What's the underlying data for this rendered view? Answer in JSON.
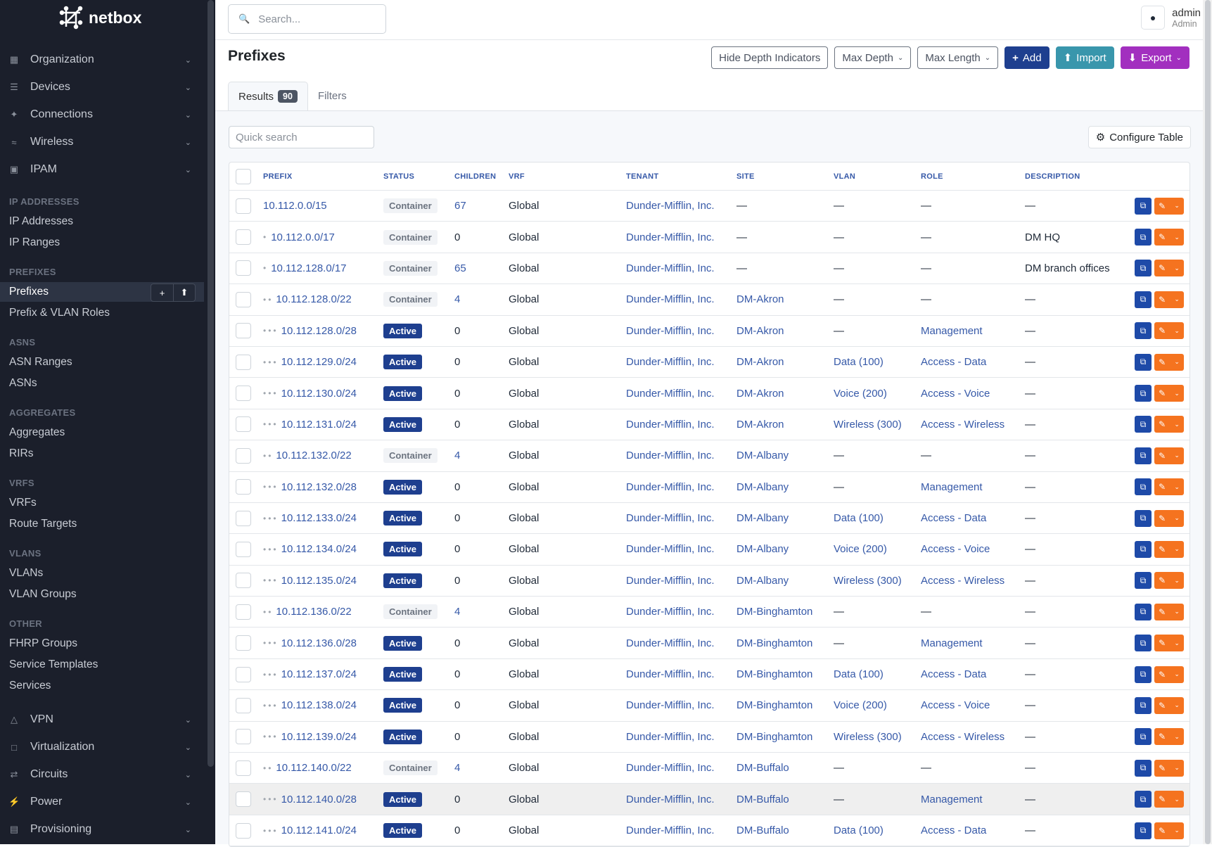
{
  "app": {
    "logo": "netbox"
  },
  "sidebar": {
    "groups_top": [
      {
        "label": "Organization",
        "icon": "building-icon"
      },
      {
        "label": "Devices",
        "icon": "server-icon"
      },
      {
        "label": "Connections",
        "icon": "plug-icon"
      },
      {
        "label": "Wireless",
        "icon": "wifi-icon"
      },
      {
        "label": "IPAM",
        "icon": "counter-icon"
      }
    ],
    "sections": [
      {
        "heading": "IP ADDRESSES",
        "items": [
          "IP Addresses",
          "IP Ranges"
        ]
      },
      {
        "heading": "PREFIXES",
        "items": [
          "Prefixes",
          "Prefix & VLAN Roles"
        ]
      },
      {
        "heading": "ASNS",
        "items": [
          "ASN Ranges",
          "ASNs"
        ]
      },
      {
        "heading": "AGGREGATES",
        "items": [
          "Aggregates",
          "RIRs"
        ]
      },
      {
        "heading": "VRFS",
        "items": [
          "VRFs",
          "Route Targets"
        ]
      },
      {
        "heading": "VLANS",
        "items": [
          "VLANs",
          "VLAN Groups"
        ]
      },
      {
        "heading": "OTHER",
        "items": [
          "FHRP Groups",
          "Service Templates",
          "Services"
        ]
      }
    ],
    "active_item": "Prefixes",
    "groups_bottom": [
      {
        "label": "VPN",
        "icon": "vpn-icon"
      },
      {
        "label": "Virtualization",
        "icon": "monitor-icon"
      },
      {
        "label": "Circuits",
        "icon": "circuit-icon"
      },
      {
        "label": "Power",
        "icon": "power-icon"
      },
      {
        "label": "Provisioning",
        "icon": "file-icon"
      }
    ]
  },
  "topbar": {
    "search_placeholder": "Search...",
    "user": "admin",
    "role": "Admin"
  },
  "page": {
    "title": "Prefixes",
    "buttons": {
      "hide_depth": "Hide Depth Indicators",
      "max_depth": "Max Depth",
      "max_length": "Max Length",
      "add": "Add",
      "import": "Import",
      "export": "Export"
    },
    "tabs": {
      "results": "Results",
      "results_count": "90",
      "filters": "Filters"
    },
    "quick_search_placeholder": "Quick search",
    "configure_table": "Configure Table"
  },
  "colors": {
    "add": "#1e3f8f",
    "import": "#3996ac",
    "export": "#a22fbf",
    "edit": "#f5731f",
    "link": "#3659a8"
  },
  "table": {
    "columns": [
      "PREFIX",
      "STATUS",
      "CHILDREN",
      "VRF",
      "TENANT",
      "SITE",
      "VLAN",
      "ROLE",
      "DESCRIPTION"
    ],
    "rows": [
      {
        "depth": 0,
        "prefix": "10.112.0.0/15",
        "status": "Container",
        "children": "67",
        "vrf": "Global",
        "tenant": "Dunder-Mifflin, Inc.",
        "site": "—",
        "vlan": "—",
        "role": "—",
        "description": "—"
      },
      {
        "depth": 1,
        "prefix": "10.112.0.0/17",
        "status": "Container",
        "children": "0",
        "vrf": "Global",
        "tenant": "Dunder-Mifflin, Inc.",
        "site": "—",
        "vlan": "—",
        "role": "—",
        "description": "DM HQ"
      },
      {
        "depth": 1,
        "prefix": "10.112.128.0/17",
        "status": "Container",
        "children": "65",
        "vrf": "Global",
        "tenant": "Dunder-Mifflin, Inc.",
        "site": "—",
        "vlan": "—",
        "role": "—",
        "description": "DM branch offices"
      },
      {
        "depth": 2,
        "prefix": "10.112.128.0/22",
        "status": "Container",
        "children": "4",
        "vrf": "Global",
        "tenant": "Dunder-Mifflin, Inc.",
        "site": "DM-Akron",
        "vlan": "—",
        "role": "—",
        "description": "—"
      },
      {
        "depth": 3,
        "prefix": "10.112.128.0/28",
        "status": "Active",
        "children": "0",
        "vrf": "Global",
        "tenant": "Dunder-Mifflin, Inc.",
        "site": "DM-Akron",
        "vlan": "—",
        "role": "Management",
        "description": "—"
      },
      {
        "depth": 3,
        "prefix": "10.112.129.0/24",
        "status": "Active",
        "children": "0",
        "vrf": "Global",
        "tenant": "Dunder-Mifflin, Inc.",
        "site": "DM-Akron",
        "vlan": "Data (100)",
        "role": "Access - Data",
        "description": "—"
      },
      {
        "depth": 3,
        "prefix": "10.112.130.0/24",
        "status": "Active",
        "children": "0",
        "vrf": "Global",
        "tenant": "Dunder-Mifflin, Inc.",
        "site": "DM-Akron",
        "vlan": "Voice (200)",
        "role": "Access - Voice",
        "description": "—"
      },
      {
        "depth": 3,
        "prefix": "10.112.131.0/24",
        "status": "Active",
        "children": "0",
        "vrf": "Global",
        "tenant": "Dunder-Mifflin, Inc.",
        "site": "DM-Akron",
        "vlan": "Wireless (300)",
        "role": "Access - Wireless",
        "description": "—"
      },
      {
        "depth": 2,
        "prefix": "10.112.132.0/22",
        "status": "Container",
        "children": "4",
        "vrf": "Global",
        "tenant": "Dunder-Mifflin, Inc.",
        "site": "DM-Albany",
        "vlan": "—",
        "role": "—",
        "description": "—"
      },
      {
        "depth": 3,
        "prefix": "10.112.132.0/28",
        "status": "Active",
        "children": "0",
        "vrf": "Global",
        "tenant": "Dunder-Mifflin, Inc.",
        "site": "DM-Albany",
        "vlan": "—",
        "role": "Management",
        "description": "—"
      },
      {
        "depth": 3,
        "prefix": "10.112.133.0/24",
        "status": "Active",
        "children": "0",
        "vrf": "Global",
        "tenant": "Dunder-Mifflin, Inc.",
        "site": "DM-Albany",
        "vlan": "Data (100)",
        "role": "Access - Data",
        "description": "—"
      },
      {
        "depth": 3,
        "prefix": "10.112.134.0/24",
        "status": "Active",
        "children": "0",
        "vrf": "Global",
        "tenant": "Dunder-Mifflin, Inc.",
        "site": "DM-Albany",
        "vlan": "Voice (200)",
        "role": "Access - Voice",
        "description": "—"
      },
      {
        "depth": 3,
        "prefix": "10.112.135.0/24",
        "status": "Active",
        "children": "0",
        "vrf": "Global",
        "tenant": "Dunder-Mifflin, Inc.",
        "site": "DM-Albany",
        "vlan": "Wireless (300)",
        "role": "Access - Wireless",
        "description": "—"
      },
      {
        "depth": 2,
        "prefix": "10.112.136.0/22",
        "status": "Container",
        "children": "4",
        "vrf": "Global",
        "tenant": "Dunder-Mifflin, Inc.",
        "site": "DM-Binghamton",
        "vlan": "—",
        "role": "—",
        "description": "—"
      },
      {
        "depth": 3,
        "prefix": "10.112.136.0/28",
        "status": "Active",
        "children": "0",
        "vrf": "Global",
        "tenant": "Dunder-Mifflin, Inc.",
        "site": "DM-Binghamton",
        "vlan": "—",
        "role": "Management",
        "description": "—"
      },
      {
        "depth": 3,
        "prefix": "10.112.137.0/24",
        "status": "Active",
        "children": "0",
        "vrf": "Global",
        "tenant": "Dunder-Mifflin, Inc.",
        "site": "DM-Binghamton",
        "vlan": "Data (100)",
        "role": "Access - Data",
        "description": "—"
      },
      {
        "depth": 3,
        "prefix": "10.112.138.0/24",
        "status": "Active",
        "children": "0",
        "vrf": "Global",
        "tenant": "Dunder-Mifflin, Inc.",
        "site": "DM-Binghamton",
        "vlan": "Voice (200)",
        "role": "Access - Voice",
        "description": "—"
      },
      {
        "depth": 3,
        "prefix": "10.112.139.0/24",
        "status": "Active",
        "children": "0",
        "vrf": "Global",
        "tenant": "Dunder-Mifflin, Inc.",
        "site": "DM-Binghamton",
        "vlan": "Wireless (300)",
        "role": "Access - Wireless",
        "description": "—"
      },
      {
        "depth": 2,
        "prefix": "10.112.140.0/22",
        "status": "Container",
        "children": "4",
        "vrf": "Global",
        "tenant": "Dunder-Mifflin, Inc.",
        "site": "DM-Buffalo",
        "vlan": "—",
        "role": "—",
        "description": "—"
      },
      {
        "depth": 3,
        "prefix": "10.112.140.0/28",
        "status": "Active",
        "children": "0",
        "vrf": "Global",
        "tenant": "Dunder-Mifflin, Inc.",
        "site": "DM-Buffalo",
        "vlan": "—",
        "role": "Management",
        "description": "—",
        "highlighted": true
      },
      {
        "depth": 3,
        "prefix": "10.112.141.0/24",
        "status": "Active",
        "children": "0",
        "vrf": "Global",
        "tenant": "Dunder-Mifflin, Inc.",
        "site": "DM-Buffalo",
        "vlan": "Data (100)",
        "role": "Access - Data",
        "description": "—"
      }
    ]
  }
}
